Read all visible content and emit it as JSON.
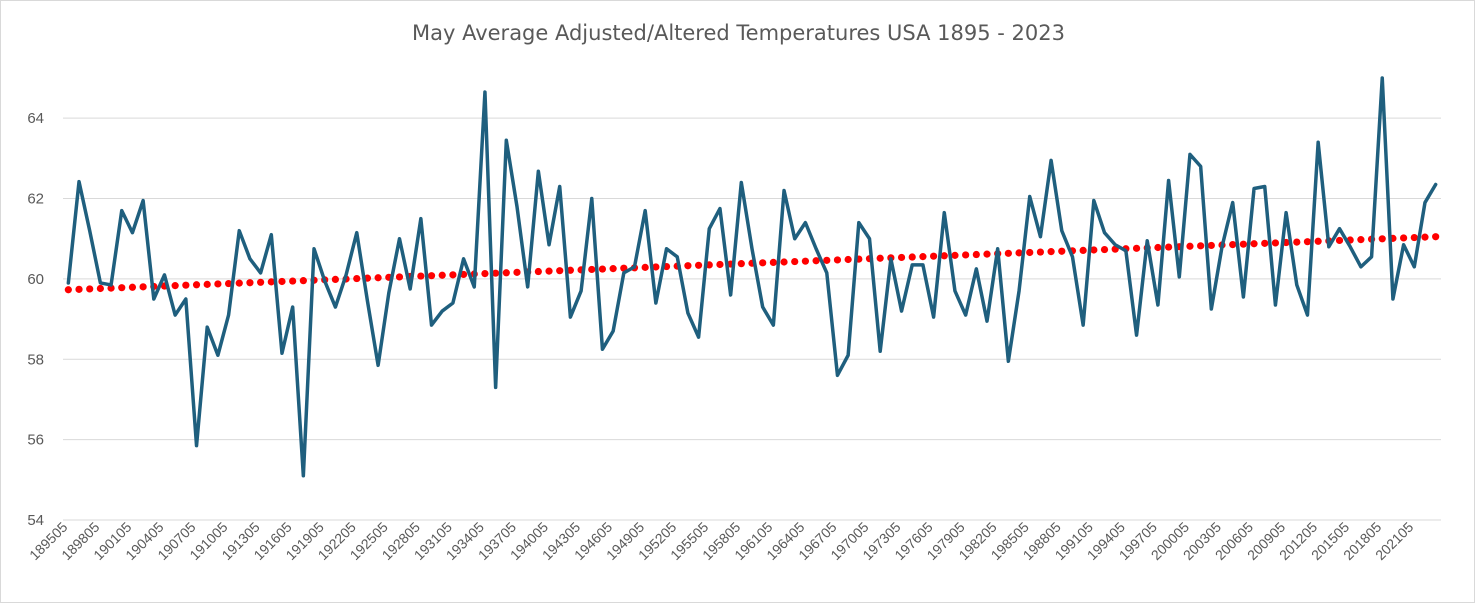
{
  "chart_data": {
    "type": "line",
    "title": "May Average Adjusted/Altered Temperatures USA 1895 - 2023",
    "xlabel": "",
    "ylabel": "",
    "ylim": [
      54,
      65
    ],
    "y_ticks": [
      "54",
      "56",
      "58",
      "60",
      "62",
      "64"
    ],
    "grid": true,
    "legend": "none",
    "x_tick_labels": [
      "189505",
      "189805",
      "190105",
      "190405",
      "190705",
      "191005",
      "191305",
      "191605",
      "191905",
      "192205",
      "192505",
      "192805",
      "193105",
      "193405",
      "193705",
      "194005",
      "194305",
      "194605",
      "194905",
      "195205",
      "195505",
      "195805",
      "196105",
      "196405",
      "196705",
      "197005",
      "197305",
      "197605",
      "197905",
      "198205",
      "198505",
      "198805",
      "199105",
      "199405",
      "199705",
      "200005",
      "200305",
      "200605",
      "200905",
      "201205",
      "201505",
      "201805",
      "202105"
    ],
    "series": [
      {
        "color": "#1f5f7e",
        "style": "solid",
        "x": [
          "189505",
          "189605",
          "189705",
          "189805",
          "189905",
          "190005",
          "190105",
          "190205",
          "190305",
          "190405",
          "190505",
          "190605",
          "190705",
          "190805",
          "190905",
          "191005",
          "191105",
          "191205",
          "191305",
          "191405",
          "191505",
          "191605",
          "191705",
          "191805",
          "191905",
          "192005",
          "192105",
          "192205",
          "192305",
          "192405",
          "192505",
          "192605",
          "192705",
          "192805",
          "192905",
          "193005",
          "193105",
          "193205",
          "193305",
          "193405",
          "193505",
          "193605",
          "193705",
          "193805",
          "193905",
          "194005",
          "194105",
          "194205",
          "194305",
          "194405",
          "194505",
          "194605",
          "194705",
          "194805",
          "194905",
          "195005",
          "195105",
          "195205",
          "195305",
          "195405",
          "195505",
          "195605",
          "195705",
          "195805",
          "195905",
          "196005",
          "196105",
          "196205",
          "196305",
          "196405",
          "196505",
          "196605",
          "196705",
          "196805",
          "196905",
          "197005",
          "197105",
          "197205",
          "197305",
          "197405",
          "197505",
          "197605",
          "197705",
          "197805",
          "197905",
          "198005",
          "198105",
          "198205",
          "198305",
          "198405",
          "198505",
          "198605",
          "198705",
          "198805",
          "198905",
          "199005",
          "199105",
          "199205",
          "199305",
          "199405",
          "199505",
          "199605",
          "199705",
          "199805",
          "199905",
          "200005",
          "200105",
          "200205",
          "200305",
          "200405",
          "200505",
          "200605",
          "200705",
          "200805",
          "200905",
          "201005",
          "201105",
          "201205",
          "201305",
          "201405",
          "201505",
          "201605",
          "201705",
          "201805",
          "201905",
          "202005",
          "202105",
          "202205",
          "202305"
        ],
        "values": [
          59.9,
          62.42,
          61.2,
          59.9,
          59.85,
          61.7,
          61.15,
          61.95,
          59.5,
          60.1,
          59.1,
          59.5,
          55.85,
          58.8,
          58.1,
          59.1,
          61.2,
          60.5,
          60.15,
          61.1,
          58.15,
          59.3,
          55.1,
          60.75,
          59.95,
          59.3,
          60.1,
          61.15,
          59.45,
          57.85,
          59.65,
          61.0,
          59.75,
          61.5,
          58.85,
          59.2,
          59.4,
          60.5,
          59.8,
          64.65,
          57.3,
          63.45,
          61.8,
          59.8,
          62.68,
          60.85,
          62.3,
          59.05,
          59.7,
          62.0,
          58.25,
          58.7,
          60.15,
          60.3,
          61.7,
          59.4,
          60.75,
          60.55,
          59.15,
          58.55,
          61.25,
          61.75,
          59.6,
          62.4,
          60.75,
          59.3,
          58.85,
          62.2,
          61.0,
          61.4,
          60.75,
          60.15,
          57.6,
          58.1,
          61.4,
          61.0,
          58.2,
          60.5,
          59.2,
          60.35,
          60.35,
          59.05,
          61.65,
          59.7,
          59.1,
          60.25,
          58.95,
          60.75,
          57.95,
          59.7,
          62.05,
          61.05,
          62.95,
          61.2,
          60.55,
          58.85,
          61.95,
          61.15,
          60.85,
          60.7,
          58.6,
          60.95,
          59.35,
          62.45,
          60.05,
          63.1,
          62.8,
          59.25,
          60.8,
          61.9,
          59.55,
          62.25,
          62.3,
          59.35,
          61.65,
          59.85,
          59.1,
          63.4,
          60.8,
          61.25,
          60.8,
          60.3,
          60.55,
          65.0,
          59.5,
          60.85,
          60.3,
          61.9,
          62.35
        ]
      },
      {
        "color": "#ff0000",
        "style": "dotted",
        "x": [
          "189505",
          "202305"
        ],
        "values": [
          59.73,
          61.05
        ]
      }
    ]
  }
}
